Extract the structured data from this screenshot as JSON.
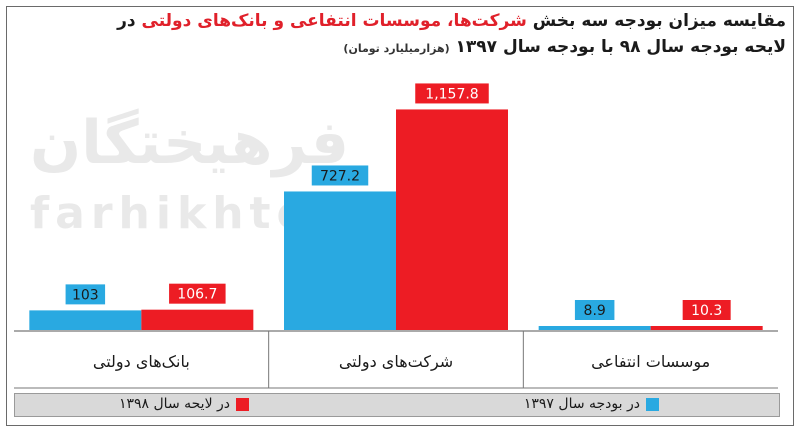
{
  "title": {
    "line1_part1": "مقایسه میزان بودجه سه بخش ",
    "line1_highlight": "شرکت‌ها، موسسات انتفاعی و بانک‌های دولتی",
    "line1_part2": " در",
    "line2": "لایحه بودجه سال ۹۸ با بودجه سال ۱۳۹۷",
    "unit": "(هزارمیلیارد تومان)"
  },
  "watermark": {
    "fa": "فرهیختگان",
    "en": "farhikhtegan"
  },
  "colors": {
    "series_1397": "#29a9e1",
    "series_1398": "#ed1c24",
    "highlight": "#e0202a"
  },
  "chart_data": {
    "type": "bar",
    "categories": [
      "بانک‌های دولتی",
      "شرکت‌های دولتی",
      "موسسات انتفاعی"
    ],
    "series": [
      {
        "name": "در بودجه سال ۱۳۹۷",
        "values": [
          103,
          727.2,
          8.9
        ],
        "labels": [
          "103",
          "727.2",
          "8.9"
        ]
      },
      {
        "name": "در لایحه سال ۱۳۹۸",
        "values": [
          106.7,
          1157.8,
          10.3
        ],
        "labels": [
          "106.7",
          "1,157.8",
          "10.3"
        ]
      }
    ],
    "legend_position": "bottom"
  }
}
